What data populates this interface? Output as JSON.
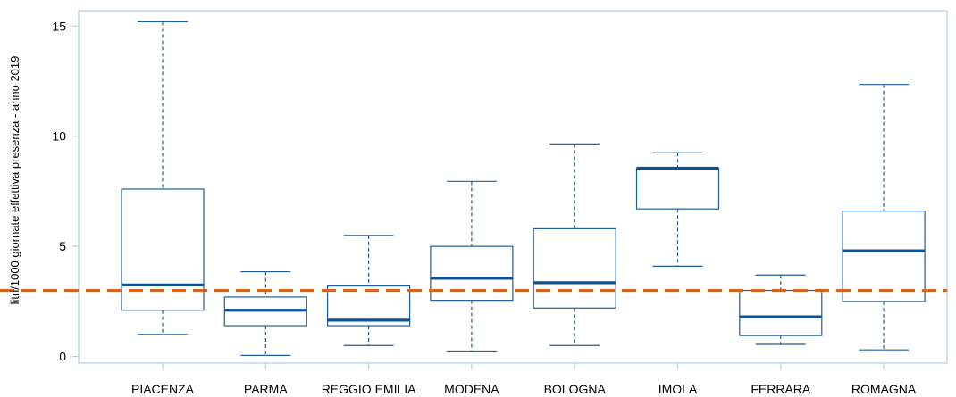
{
  "chart_data": {
    "type": "boxplot",
    "title": "",
    "xlabel": "",
    "ylabel": "litri/1000 giornate effettiva presenza - anno 2019",
    "ylim": [
      -0.3,
      15.7
    ],
    "yticks": [
      0,
      5,
      10,
      15
    ],
    "reference_line": {
      "y": 3.0,
      "style": "dashed",
      "color": "#d9631e"
    },
    "colors": {
      "box": "#1f5e9e",
      "median": "#0e5196",
      "axis": "#b7cde3"
    },
    "categories": [
      "PIACENZA",
      "PARMA",
      "REGGIO EMILIA",
      "MODENA",
      "BOLOGNA",
      "IMOLA",
      "FERRARA",
      "ROMAGNA"
    ],
    "boxes": [
      {
        "min": 1.0,
        "q1": 2.1,
        "median": 3.25,
        "q3": 7.6,
        "max": 15.2
      },
      {
        "min": 0.05,
        "q1": 1.4,
        "median": 2.1,
        "q3": 2.7,
        "max": 3.85
      },
      {
        "min": 0.5,
        "q1": 1.4,
        "median": 1.65,
        "q3": 3.2,
        "max": 5.5
      },
      {
        "min": 0.25,
        "q1": 2.55,
        "median": 3.55,
        "q3": 5.0,
        "max": 7.95
      },
      {
        "min": 0.5,
        "q1": 2.2,
        "median": 3.35,
        "q3": 5.8,
        "max": 9.65
      },
      {
        "min": 4.1,
        "q1": 6.7,
        "median": 8.55,
        "q3": 8.55,
        "max": 9.25
      },
      {
        "min": 0.55,
        "q1": 0.95,
        "median": 1.8,
        "q3": 3.0,
        "max": 3.7
      },
      {
        "min": 0.3,
        "q1": 2.5,
        "median": 4.8,
        "q3": 6.6,
        "max": 12.35
      }
    ],
    "grid": false,
    "legend": "none"
  }
}
